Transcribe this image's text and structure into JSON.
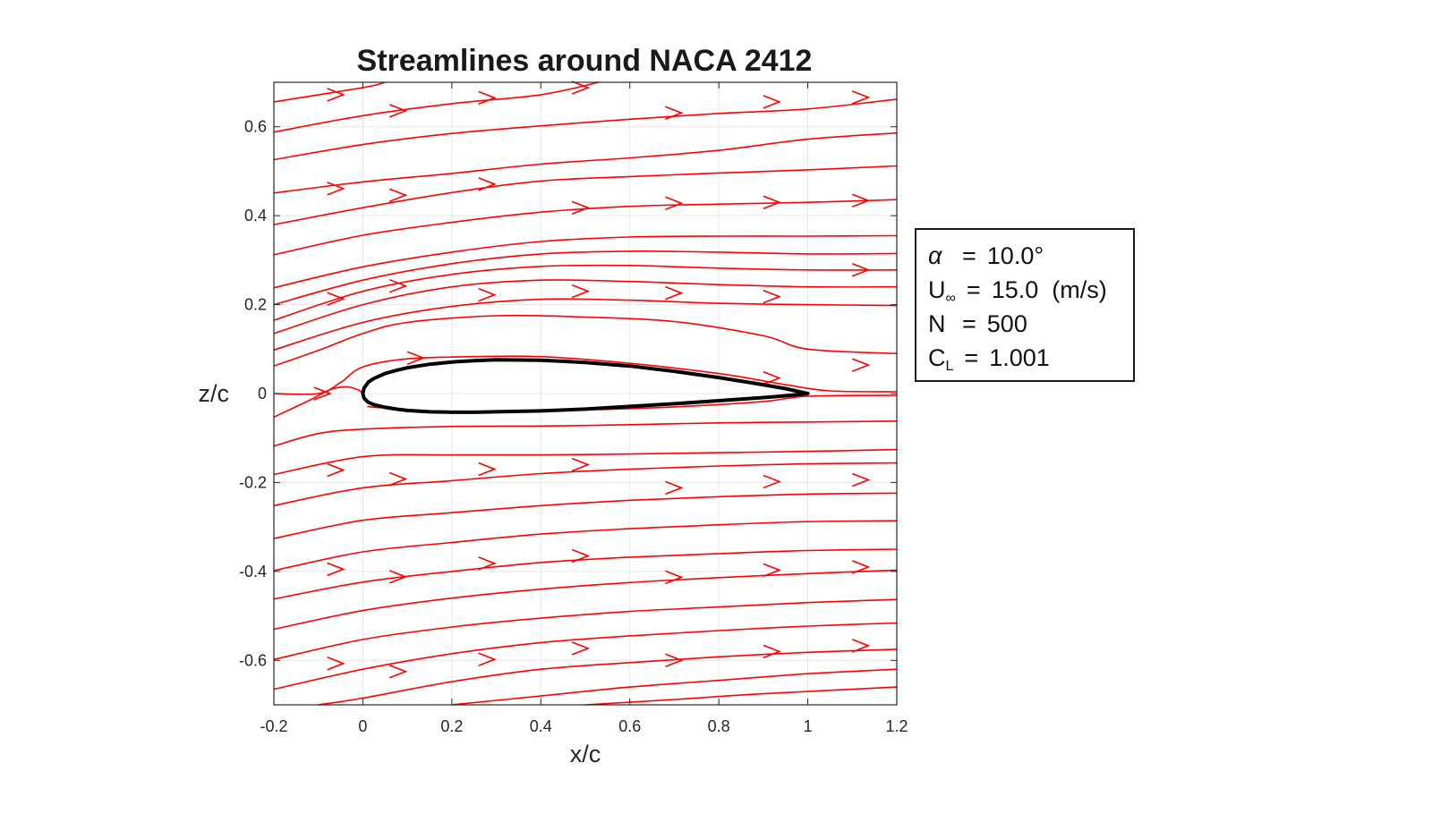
{
  "chart_data": {
    "type": "line",
    "title": "Streamlines around NACA 2412",
    "xlabel": "x/c",
    "ylabel": "z/c",
    "xlim": [
      -0.2,
      1.2
    ],
    "ylim": [
      -0.7,
      0.7
    ],
    "xticks": [
      "-0.2",
      "0",
      "0.2",
      "0.4",
      "0.6",
      "0.8",
      "1",
      "1.2"
    ],
    "yticks": [
      "-0.6",
      "-0.4",
      "-0.2",
      "0",
      "0.2",
      "0.4",
      "0.6"
    ],
    "grid": true,
    "streamline_color": "#ff0000",
    "airfoil_color": "#000000",
    "airfoil": {
      "upper": [
        [
          0.0,
          0.0
        ],
        [
          0.0025,
          0.012
        ],
        [
          0.0125,
          0.026
        ],
        [
          0.025,
          0.034
        ],
        [
          0.05,
          0.045
        ],
        [
          0.075,
          0.052
        ],
        [
          0.1,
          0.058
        ],
        [
          0.15,
          0.066
        ],
        [
          0.2,
          0.071
        ],
        [
          0.25,
          0.074
        ],
        [
          0.3,
          0.076
        ],
        [
          0.4,
          0.075
        ],
        [
          0.5,
          0.07
        ],
        [
          0.6,
          0.062
        ],
        [
          0.7,
          0.05
        ],
        [
          0.8,
          0.036
        ],
        [
          0.9,
          0.02
        ],
        [
          0.95,
          0.011
        ],
        [
          1.0,
          0.0
        ]
      ],
      "lower": [
        [
          0.0,
          0.0
        ],
        [
          0.0025,
          -0.01
        ],
        [
          0.0125,
          -0.02
        ],
        [
          0.025,
          -0.025
        ],
        [
          0.05,
          -0.031
        ],
        [
          0.075,
          -0.035
        ],
        [
          0.1,
          -0.038
        ],
        [
          0.15,
          -0.041
        ],
        [
          0.2,
          -0.042
        ],
        [
          0.25,
          -0.042
        ],
        [
          0.3,
          -0.041
        ],
        [
          0.4,
          -0.039
        ],
        [
          0.5,
          -0.035
        ],
        [
          0.6,
          -0.029
        ],
        [
          0.7,
          -0.023
        ],
        [
          0.8,
          -0.016
        ],
        [
          0.9,
          -0.009
        ],
        [
          0.95,
          -0.005
        ],
        [
          1.0,
          0.0
        ]
      ]
    },
    "streamlines": [
      [
        [
          -0.2,
          0.656
        ],
        [
          0.0,
          0.688
        ],
        [
          0.05,
          0.7
        ]
      ],
      [
        [
          -0.2,
          0.588
        ],
        [
          0.0,
          0.625
        ],
        [
          0.2,
          0.652
        ],
        [
          0.4,
          0.672
        ],
        [
          0.53,
          0.7
        ]
      ],
      [
        [
          -0.2,
          0.526
        ],
        [
          0.0,
          0.56
        ],
        [
          0.2,
          0.585
        ],
        [
          0.4,
          0.602
        ],
        [
          0.6,
          0.617
        ],
        [
          0.8,
          0.63
        ],
        [
          1.0,
          0.64
        ],
        [
          1.2,
          0.662
        ]
      ],
      [
        [
          -0.2,
          0.451
        ],
        [
          0.0,
          0.476
        ],
        [
          0.2,
          0.495
        ],
        [
          0.4,
          0.516
        ],
        [
          0.6,
          0.53
        ],
        [
          0.8,
          0.547
        ],
        [
          1.0,
          0.572
        ],
        [
          1.2,
          0.586
        ]
      ],
      [
        [
          -0.2,
          0.38
        ],
        [
          0.0,
          0.418
        ],
        [
          0.2,
          0.452
        ],
        [
          0.4,
          0.478
        ],
        [
          0.6,
          0.488
        ],
        [
          0.8,
          0.496
        ],
        [
          1.0,
          0.503
        ],
        [
          1.2,
          0.512
        ]
      ],
      [
        [
          -0.2,
          0.312
        ],
        [
          0.0,
          0.356
        ],
        [
          0.2,
          0.385
        ],
        [
          0.4,
          0.408
        ],
        [
          0.6,
          0.421
        ],
        [
          0.8,
          0.426
        ],
        [
          1.0,
          0.43
        ],
        [
          1.2,
          0.436
        ]
      ],
      [
        [
          -0.2,
          0.238
        ],
        [
          0.0,
          0.285
        ],
        [
          0.2,
          0.318
        ],
        [
          0.4,
          0.342
        ],
        [
          0.6,
          0.352
        ],
        [
          0.8,
          0.354
        ],
        [
          1.0,
          0.354
        ],
        [
          1.2,
          0.355
        ]
      ],
      [
        [
          -0.2,
          0.2
        ],
        [
          0.0,
          0.255
        ],
        [
          0.2,
          0.292
        ],
        [
          0.4,
          0.314
        ],
        [
          0.6,
          0.32
        ],
        [
          0.8,
          0.318
        ],
        [
          1.0,
          0.314
        ],
        [
          1.2,
          0.315
        ]
      ],
      [
        [
          -0.2,
          0.165
        ],
        [
          0.0,
          0.23
        ],
        [
          0.2,
          0.268
        ],
        [
          0.4,
          0.286
        ],
        [
          0.6,
          0.288
        ],
        [
          0.8,
          0.282
        ],
        [
          1.0,
          0.278
        ],
        [
          1.2,
          0.278
        ]
      ],
      [
        [
          -0.2,
          0.135
        ],
        [
          0.0,
          0.2
        ],
        [
          0.2,
          0.24
        ],
        [
          0.4,
          0.255
        ],
        [
          0.6,
          0.252
        ],
        [
          0.8,
          0.245
        ],
        [
          1.0,
          0.24
        ],
        [
          1.2,
          0.24
        ]
      ],
      [
        [
          -0.2,
          0.098
        ],
        [
          0.0,
          0.16
        ],
        [
          0.2,
          0.196
        ],
        [
          0.4,
          0.212
        ],
        [
          0.6,
          0.21
        ],
        [
          0.8,
          0.203
        ],
        [
          1.0,
          0.2
        ],
        [
          1.2,
          0.198
        ]
      ],
      [
        [
          -0.2,
          0.062
        ],
        [
          -0.1,
          0.097
        ],
        [
          0.0,
          0.135
        ],
        [
          0.1,
          0.16
        ],
        [
          0.3,
          0.175
        ],
        [
          0.5,
          0.172
        ],
        [
          0.7,
          0.162
        ],
        [
          0.9,
          0.13
        ],
        [
          1.0,
          0.1
        ],
        [
          1.2,
          0.09
        ]
      ],
      [
        [
          -0.2,
          0.0
        ],
        [
          -0.1,
          0.0
        ],
        [
          -0.05,
          0.025
        ],
        [
          0.0,
          0.06
        ],
        [
          0.1,
          0.078
        ],
        [
          0.25,
          0.083
        ],
        [
          0.4,
          0.083
        ],
        [
          0.6,
          0.068
        ],
        [
          0.8,
          0.045
        ],
        [
          0.95,
          0.02
        ],
        [
          1.05,
          0.006
        ],
        [
          1.2,
          0.004
        ]
      ],
      [
        [
          -0.2,
          -0.053
        ],
        [
          -0.12,
          -0.015
        ],
        [
          -0.07,
          0.01
        ],
        [
          -0.035,
          0.015
        ],
        [
          -0.01,
          0.008
        ],
        [
          0.0,
          0.0
        ]
      ],
      [
        [
          0.01,
          -0.029
        ],
        [
          0.04,
          -0.032
        ]
      ],
      [
        [
          0.53,
          -0.036
        ],
        [
          0.7,
          -0.03
        ],
        [
          0.9,
          -0.018
        ],
        [
          1.0,
          -0.006
        ],
        [
          1.2,
          -0.004
        ]
      ],
      [
        [
          -0.2,
          -0.118
        ],
        [
          -0.1,
          -0.09
        ],
        [
          0.0,
          -0.08
        ],
        [
          0.2,
          -0.074
        ],
        [
          0.4,
          -0.073
        ],
        [
          0.6,
          -0.07
        ],
        [
          0.8,
          -0.066
        ],
        [
          1.0,
          -0.064
        ],
        [
          1.2,
          -0.062
        ]
      ],
      [
        [
          -0.2,
          -0.182
        ],
        [
          0.0,
          -0.142
        ],
        [
          0.2,
          -0.138
        ],
        [
          0.4,
          -0.138
        ],
        [
          0.6,
          -0.136
        ],
        [
          0.8,
          -0.133
        ],
        [
          1.0,
          -0.13
        ],
        [
          1.2,
          -0.126
        ]
      ],
      [
        [
          -0.2,
          -0.252
        ],
        [
          0.0,
          -0.212
        ],
        [
          0.2,
          -0.196
        ],
        [
          0.4,
          -0.18
        ],
        [
          0.6,
          -0.17
        ],
        [
          0.8,
          -0.163
        ],
        [
          1.0,
          -0.158
        ],
        [
          1.2,
          -0.156
        ]
      ],
      [
        [
          -0.2,
          -0.326
        ],
        [
          0.0,
          -0.285
        ],
        [
          0.2,
          -0.268
        ],
        [
          0.4,
          -0.252
        ],
        [
          0.6,
          -0.24
        ],
        [
          0.8,
          -0.232
        ],
        [
          1.0,
          -0.226
        ],
        [
          1.2,
          -0.224
        ]
      ],
      [
        [
          -0.2,
          -0.398
        ],
        [
          0.0,
          -0.356
        ],
        [
          0.2,
          -0.335
        ],
        [
          0.4,
          -0.316
        ],
        [
          0.6,
          -0.304
        ],
        [
          0.8,
          -0.295
        ],
        [
          1.0,
          -0.288
        ],
        [
          1.2,
          -0.286
        ]
      ],
      [
        [
          -0.2,
          -0.462
        ],
        [
          0.0,
          -0.424
        ],
        [
          0.2,
          -0.4
        ],
        [
          0.4,
          -0.38
        ],
        [
          0.6,
          -0.368
        ],
        [
          0.8,
          -0.36
        ],
        [
          1.0,
          -0.353
        ],
        [
          1.2,
          -0.35
        ]
      ],
      [
        [
          -0.2,
          -0.53
        ],
        [
          0.0,
          -0.488
        ],
        [
          0.2,
          -0.46
        ],
        [
          0.4,
          -0.44
        ],
        [
          0.6,
          -0.425
        ],
        [
          0.8,
          -0.414
        ],
        [
          1.0,
          -0.405
        ],
        [
          1.2,
          -0.397
        ]
      ],
      [
        [
          -0.2,
          -0.598
        ],
        [
          0.0,
          -0.553
        ],
        [
          0.2,
          -0.525
        ],
        [
          0.4,
          -0.505
        ],
        [
          0.6,
          -0.49
        ],
        [
          0.8,
          -0.48
        ],
        [
          1.0,
          -0.47
        ],
        [
          1.2,
          -0.463
        ]
      ],
      [
        [
          -0.2,
          -0.665
        ],
        [
          0.0,
          -0.62
        ],
        [
          0.2,
          -0.585
        ],
        [
          0.4,
          -0.56
        ],
        [
          0.6,
          -0.545
        ],
        [
          0.8,
          -0.533
        ],
        [
          1.0,
          -0.523
        ],
        [
          1.2,
          -0.516
        ]
      ],
      [
        [
          -0.1,
          -0.7
        ],
        [
          0.0,
          -0.685
        ],
        [
          0.2,
          -0.648
        ],
        [
          0.4,
          -0.62
        ],
        [
          0.6,
          -0.605
        ],
        [
          0.8,
          -0.592
        ],
        [
          1.0,
          -0.582
        ],
        [
          1.2,
          -0.575
        ]
      ],
      [
        [
          0.2,
          -0.7
        ],
        [
          0.4,
          -0.68
        ],
        [
          0.6,
          -0.66
        ],
        [
          0.8,
          -0.645
        ],
        [
          1.0,
          -0.63
        ],
        [
          1.2,
          -0.62
        ]
      ],
      [
        [
          0.5,
          -0.7
        ],
        [
          0.7,
          -0.688
        ],
        [
          0.9,
          -0.675
        ],
        [
          1.2,
          -0.66
        ]
      ]
    ],
    "arrows": [
      [
        -0.06,
        0.672
      ],
      [
        0.08,
        0.636
      ],
      [
        0.28,
        0.665
      ],
      [
        0.49,
        0.688
      ],
      [
        -0.06,
        0.461
      ],
      [
        0.08,
        0.446
      ],
      [
        0.28,
        0.471
      ],
      [
        0.7,
        0.631
      ],
      [
        0.92,
        0.656
      ],
      [
        1.12,
        0.666
      ],
      [
        0.49,
        0.418
      ],
      [
        0.7,
        0.428
      ],
      [
        0.92,
        0.43
      ],
      [
        1.12,
        0.434
      ],
      [
        1.12,
        0.278
      ],
      [
        0.08,
        0.242
      ],
      [
        -0.06,
        0.213
      ],
      [
        0.28,
        0.222
      ],
      [
        0.49,
        0.23
      ],
      [
        0.7,
        0.226
      ],
      [
        0.92,
        0.218
      ],
      [
        0.12,
        0.08
      ],
      [
        0.92,
        0.035
      ],
      [
        1.12,
        0.064
      ],
      [
        -0.09,
        0.0
      ],
      [
        -0.06,
        -0.172
      ],
      [
        0.08,
        -0.192
      ],
      [
        0.28,
        -0.17
      ],
      [
        0.49,
        -0.16
      ],
      [
        0.7,
        -0.212
      ],
      [
        0.92,
        -0.198
      ],
      [
        1.12,
        -0.194
      ],
      [
        -0.06,
        -0.395
      ],
      [
        0.08,
        -0.412
      ],
      [
        0.28,
        -0.382
      ],
      [
        0.49,
        -0.365
      ],
      [
        0.7,
        -0.413
      ],
      [
        0.92,
        -0.397
      ],
      [
        1.12,
        -0.39
      ],
      [
        -0.06,
        -0.607
      ],
      [
        0.08,
        -0.625
      ],
      [
        0.28,
        -0.598
      ],
      [
        0.49,
        -0.573
      ],
      [
        0.7,
        -0.6
      ],
      [
        0.92,
        -0.58
      ],
      [
        1.12,
        -0.567
      ]
    ]
  },
  "info": {
    "alpha_symbol": "α",
    "alpha_value": "10.0°",
    "u_symbol": "U",
    "u_sub": "∞",
    "u_value": "15.0  (m/s)",
    "n_symbol": "N",
    "n_value": "500",
    "cl_symbol": "C",
    "cl_sub": "L",
    "cl_value": "1.001",
    "equals": "="
  }
}
